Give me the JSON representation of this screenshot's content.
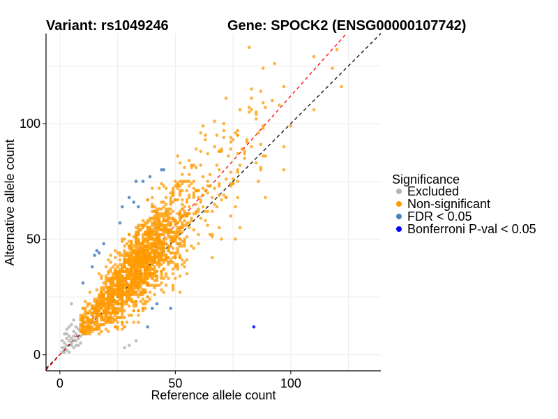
{
  "chart_data": {
    "type": "scatter",
    "title_left": "Variant: rs1049246",
    "title_right": "Gene: SPOCK2 (ENSG00000107742)",
    "xlabel": "Reference allele count",
    "ylabel": "Alternative allele count",
    "xlim": [
      -6,
      139
    ],
    "ylim": [
      -7,
      139
    ],
    "x_ticks": [
      0,
      50,
      100
    ],
    "y_ticks": [
      0,
      50,
      100
    ],
    "grid": true,
    "reference_lines": [
      {
        "name": "identity",
        "slope": 1,
        "intercept": 0,
        "color": "#000000",
        "style": "dashed"
      },
      {
        "name": "fitted",
        "slope": 1.12,
        "intercept": 0,
        "color": "#ff0000",
        "style": "dashed"
      }
    ],
    "legend": {
      "title": "Significance",
      "position": "right",
      "entries": [
        {
          "label": "Excluded",
          "color": "#b4b4b4"
        },
        {
          "label": "Non-significant",
          "color": "#ff9a00"
        },
        {
          "label": "FDR < 0.05",
          "color": "#4a7fc1"
        },
        {
          "label": "Bonferroni P-val < 0.05",
          "color": "#0000ff"
        }
      ]
    },
    "series": [
      {
        "name": "Excluded",
        "color": "#b4b4b4",
        "points": [
          [
            1,
            3
          ],
          [
            2,
            5
          ],
          [
            3,
            2
          ],
          [
            4,
            8
          ],
          [
            5,
            4
          ],
          [
            3,
            7
          ],
          [
            6,
            10
          ],
          [
            5,
            13
          ],
          [
            7,
            6
          ],
          [
            8,
            11
          ],
          [
            2,
            9
          ],
          [
            4,
            12
          ],
          [
            6,
            3
          ],
          [
            9,
            8
          ],
          [
            3,
            4
          ],
          [
            5,
            7
          ],
          [
            7,
            12
          ],
          [
            8,
            4
          ],
          [
            6,
            15
          ],
          [
            5,
            22
          ],
          [
            28,
            3
          ],
          [
            33,
            6
          ],
          [
            30,
            4
          ],
          [
            4,
            1
          ],
          [
            2,
            1
          ],
          [
            1,
            6
          ],
          [
            9,
            13
          ],
          [
            7,
            9
          ],
          [
            4,
            6
          ],
          [
            3,
            11
          ],
          [
            6,
            8
          ],
          [
            8,
            7
          ],
          [
            5,
            5
          ],
          [
            10,
            10
          ],
          [
            1,
            1
          ],
          [
            2,
            3
          ],
          [
            6,
            6
          ],
          [
            3,
            9
          ],
          [
            7,
            4
          ],
          [
            9,
            5
          ]
        ]
      },
      {
        "name": "Non-significant",
        "color": "#ff9a00",
        "points": []
      },
      {
        "name": "FDR < 0.05",
        "color": "#4a7fc1",
        "points": [
          [
            10,
            31
          ],
          [
            15,
            43
          ],
          [
            16,
            45
          ],
          [
            17,
            44
          ],
          [
            19,
            48
          ],
          [
            27,
            64
          ],
          [
            30,
            68
          ],
          [
            32,
            66
          ],
          [
            33,
            75
          ],
          [
            36,
            75
          ],
          [
            39,
            77
          ],
          [
            44,
            80
          ],
          [
            45,
            80
          ],
          [
            40,
            20
          ],
          [
            42,
            22
          ],
          [
            48,
            20
          ],
          [
            38,
            12
          ],
          [
            26,
            57
          ],
          [
            34,
            64
          ],
          [
            14,
            38
          ]
        ]
      },
      {
        "name": "Bonferroni P-val < 0.05",
        "color": "#0000ff",
        "points": [
          [
            84,
            12
          ]
        ]
      }
    ],
    "non_significant_summary": {
      "approx_point_count": 2000,
      "trend": "approximately y = 1.12x, counts from about 10 to 125"
    }
  }
}
